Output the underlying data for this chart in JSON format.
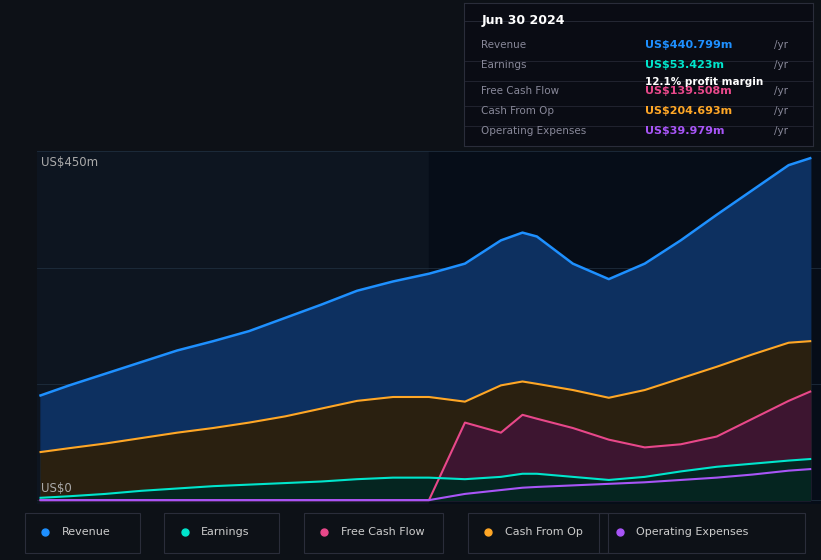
{
  "background_color": "#0d1117",
  "chart_bg_color": "#0d1520",
  "grid_color": "#1e2d3d",
  "ylabel_top": "US$450m",
  "ylabel_bot": "US$0",
  "years": [
    2013.6,
    2014.0,
    2014.5,
    2015.0,
    2015.5,
    2016.0,
    2016.5,
    2017.0,
    2017.5,
    2018.0,
    2018.5,
    2019.0,
    2019.5,
    2020.0,
    2020.3,
    2020.5,
    2021.0,
    2021.5,
    2022.0,
    2022.5,
    2023.0,
    2023.5,
    2024.0,
    2024.3
  ],
  "revenue": [
    135,
    148,
    163,
    178,
    193,
    205,
    218,
    235,
    252,
    270,
    282,
    292,
    305,
    335,
    345,
    340,
    305,
    285,
    305,
    335,
    368,
    400,
    432,
    441
  ],
  "earnings": [
    3,
    5,
    8,
    12,
    15,
    18,
    20,
    22,
    24,
    27,
    29,
    29,
    27,
    30,
    34,
    34,
    30,
    26,
    30,
    37,
    43,
    47,
    51,
    53
  ],
  "free_cash_flow": [
    0,
    0,
    0,
    0,
    0,
    0,
    0,
    0,
    0,
    0,
    0,
    0,
    100,
    87,
    110,
    105,
    93,
    78,
    68,
    72,
    82,
    105,
    128,
    140
  ],
  "cash_from_op": [
    62,
    67,
    73,
    80,
    87,
    93,
    100,
    108,
    118,
    128,
    133,
    133,
    127,
    148,
    153,
    150,
    142,
    132,
    142,
    157,
    172,
    188,
    203,
    205
  ],
  "op_expenses": [
    0,
    0,
    0,
    0,
    0,
    0,
    0,
    0,
    0,
    0,
    0,
    0,
    8,
    13,
    16,
    17,
    19,
    21,
    23,
    26,
    29,
    33,
    38,
    40
  ],
  "shaded_start": 2019.0,
  "revenue_line_color": "#1e90ff",
  "earnings_line_color": "#00e5cc",
  "fcf_line_color": "#e8488a",
  "cfo_line_color": "#ffa726",
  "opex_line_color": "#a855f7",
  "revenue_fill_color": "#0d3060",
  "cfo_fill_color": "#2a2010",
  "fcf_fill_color": "#3d1530",
  "opex_fill_color": "#2a1045",
  "earnings_fill_color": "#052520",
  "shaded_fill_color": "#060d18",
  "xlim": [
    2013.55,
    2024.45
  ],
  "ylim": [
    -5,
    450
  ],
  "xticks": [
    2014,
    2015,
    2016,
    2017,
    2018,
    2019,
    2020,
    2021,
    2022,
    2023,
    2024
  ],
  "info_box": {
    "title": "Jun 30 2024",
    "rows": [
      {
        "label": "Revenue",
        "value": "US$440.799m",
        "unit": "/yr",
        "value_color": "#1e90ff",
        "sub": null
      },
      {
        "label": "Earnings",
        "value": "US$53.423m",
        "unit": "/yr",
        "value_color": "#00e5cc",
        "sub": "12.1% profit margin"
      },
      {
        "label": "Free Cash Flow",
        "value": "US$139.508m",
        "unit": "/yr",
        "value_color": "#e8488a",
        "sub": null
      },
      {
        "label": "Cash From Op",
        "value": "US$204.693m",
        "unit": "/yr",
        "value_color": "#ffa726",
        "sub": null
      },
      {
        "label": "Operating Expenses",
        "value": "US$39.979m",
        "unit": "/yr",
        "value_color": "#a855f7",
        "sub": null
      }
    ]
  },
  "legend_items": [
    {
      "label": "Revenue",
      "color": "#1e90ff"
    },
    {
      "label": "Earnings",
      "color": "#00e5cc"
    },
    {
      "label": "Free Cash Flow",
      "color": "#e8488a"
    },
    {
      "label": "Cash From Op",
      "color": "#ffa726"
    },
    {
      "label": "Operating Expenses",
      "color": "#a855f7"
    }
  ]
}
